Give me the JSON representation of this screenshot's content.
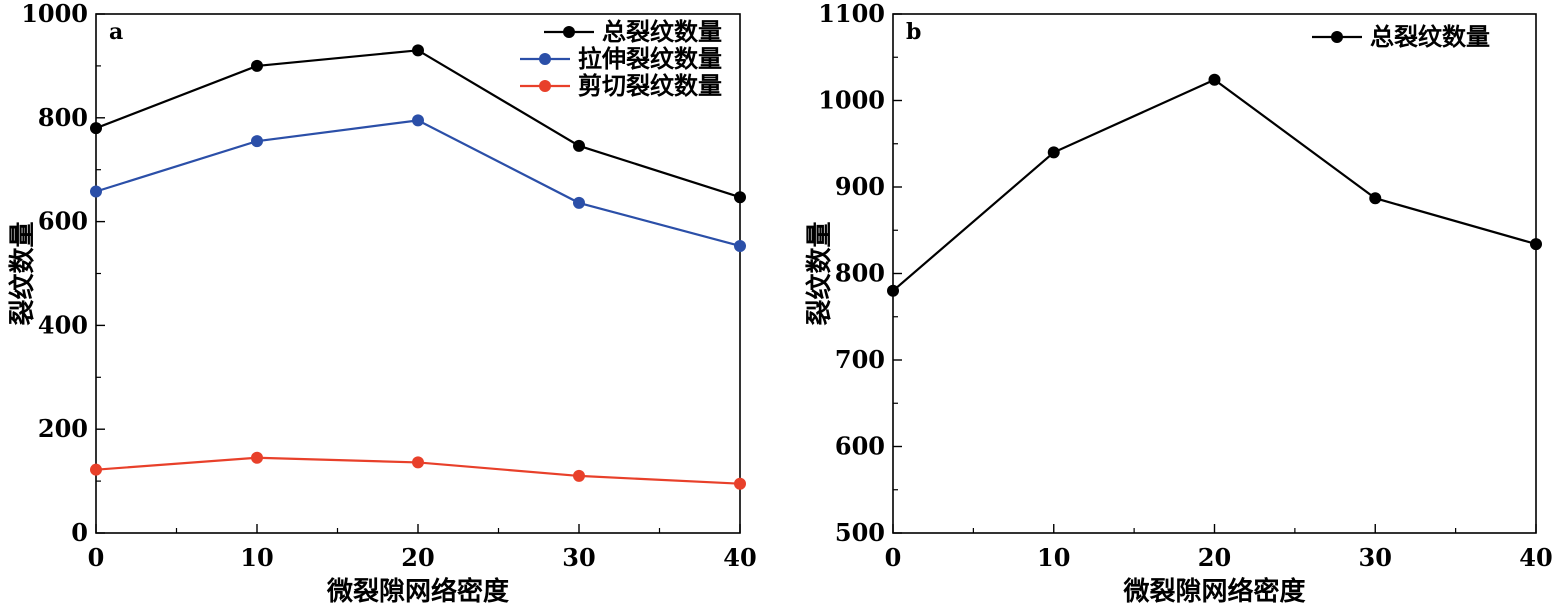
{
  "chart_data": [
    {
      "type": "line",
      "panel_label": "a",
      "xlabel": "微裂隙网络密度",
      "ylabel": "裂纹数量",
      "x": [
        0,
        10,
        20,
        30,
        40
      ],
      "xlim": [
        0,
        40
      ],
      "ylim": [
        0,
        1000
      ],
      "xticks": [
        0,
        10,
        20,
        30,
        40
      ],
      "yticks": [
        0,
        200,
        400,
        600,
        800,
        1000
      ],
      "grid": false,
      "legend_position": "top-right",
      "series": [
        {
          "name": "总裂纹数量",
          "color": "#000000",
          "values": [
            780,
            900,
            930,
            746,
            647
          ]
        },
        {
          "name": "拉伸裂纹数量",
          "color": "#2b4fa8",
          "values": [
            658,
            755,
            795,
            636,
            553
          ]
        },
        {
          "name": "剪切裂纹数量",
          "color": "#e8402a",
          "values": [
            122,
            145,
            136,
            110,
            95
          ]
        }
      ]
    },
    {
      "type": "line",
      "panel_label": "b",
      "xlabel": "微裂隙网络密度",
      "ylabel": "裂纹数量",
      "x": [
        0,
        10,
        20,
        30,
        40
      ],
      "xlim": [
        0,
        40
      ],
      "ylim": [
        500,
        1100
      ],
      "xticks": [
        0,
        10,
        20,
        30,
        40
      ],
      "yticks": [
        500,
        600,
        700,
        800,
        900,
        1000,
        1100
      ],
      "grid": false,
      "legend_position": "top-right",
      "series": [
        {
          "name": "总裂纹数量",
          "color": "#000000",
          "values": [
            780,
            940,
            1024,
            887,
            834
          ]
        }
      ]
    }
  ]
}
